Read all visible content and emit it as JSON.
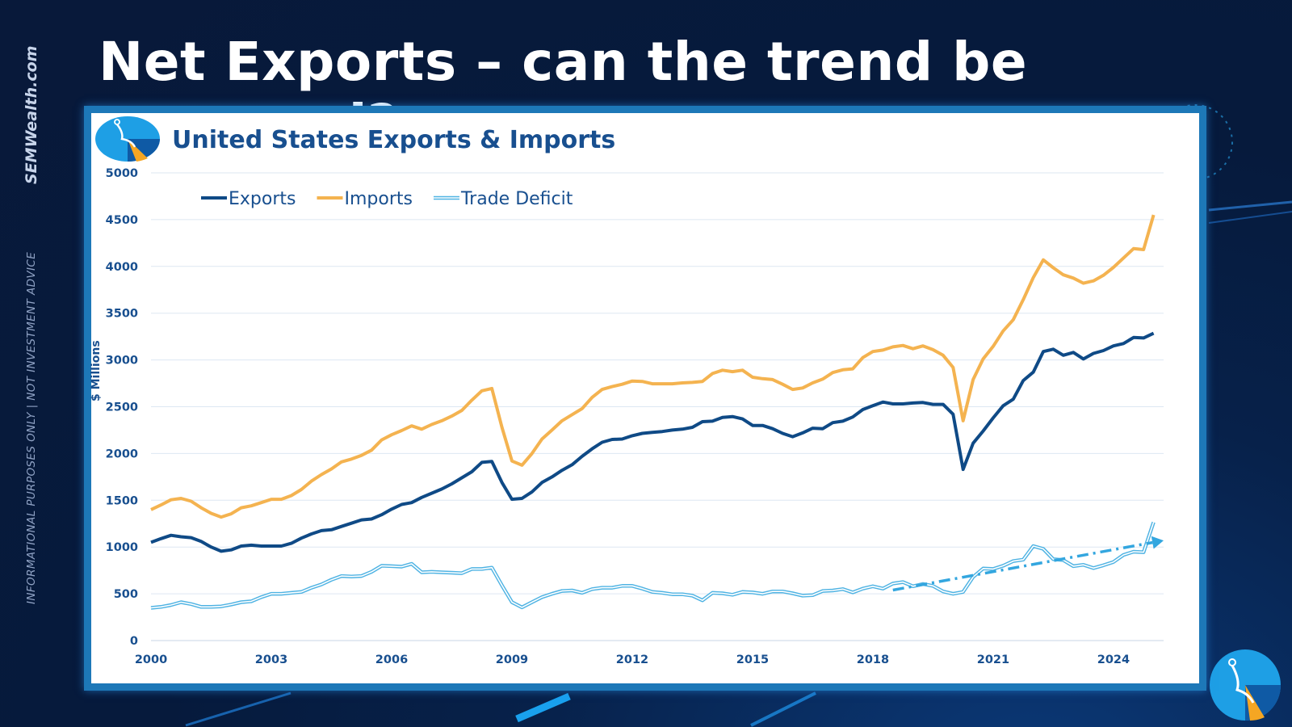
{
  "slide": {
    "title": "Net Exports – can the trend be reversed?",
    "brand": "SEMWealth.com",
    "disclaimer": "INFORMATIONAL PURPOSES ONLY | NOT INVESTMENT ADVICE"
  },
  "colors": {
    "exports": "#0f4a86",
    "imports": "#f4b350",
    "trade_deficit": "#4fb3e3",
    "trend": "#33a6df",
    "axis_text": "#184f8f",
    "grid": "#dde7f2"
  },
  "chart_data": {
    "type": "line",
    "title": "United States Exports & Imports",
    "xlabel": "",
    "ylabel": "$ Millions",
    "xlim": [
      2000,
      2025.25
    ],
    "ylim": [
      0,
      5000
    ],
    "y_ticks": [
      0,
      500,
      1000,
      1500,
      2000,
      2500,
      3000,
      3500,
      4000,
      4500,
      5000
    ],
    "x_ticks": [
      2000,
      2003,
      2006,
      2009,
      2012,
      2015,
      2018,
      2021,
      2024
    ],
    "grid": true,
    "legend_position": "top-left",
    "x": [
      2000.0,
      2000.25,
      2000.5,
      2000.75,
      2001.0,
      2001.25,
      2001.5,
      2001.75,
      2002.0,
      2002.25,
      2002.5,
      2002.75,
      2003.0,
      2003.25,
      2003.5,
      2003.75,
      2004.0,
      2004.25,
      2004.5,
      2004.75,
      2005.0,
      2005.25,
      2005.5,
      2005.75,
      2006.0,
      2006.25,
      2006.5,
      2006.75,
      2007.0,
      2007.25,
      2007.5,
      2007.75,
      2008.0,
      2008.25,
      2008.5,
      2008.75,
      2009.0,
      2009.25,
      2009.5,
      2009.75,
      2010.0,
      2010.25,
      2010.5,
      2010.75,
      2011.0,
      2011.25,
      2011.5,
      2011.75,
      2012.0,
      2012.25,
      2012.5,
      2012.75,
      2013.0,
      2013.25,
      2013.5,
      2013.75,
      2014.0,
      2014.25,
      2014.5,
      2014.75,
      2015.0,
      2015.25,
      2015.5,
      2015.75,
      2016.0,
      2016.25,
      2016.5,
      2016.75,
      2017.0,
      2017.25,
      2017.5,
      2017.75,
      2018.0,
      2018.25,
      2018.5,
      2018.75,
      2019.0,
      2019.25,
      2019.5,
      2019.75,
      2020.0,
      2020.25,
      2020.5,
      2020.75,
      2021.0,
      2021.25,
      2021.5,
      2021.75,
      2022.0,
      2022.25,
      2022.5,
      2022.75,
      2023.0,
      2023.25,
      2023.5,
      2023.75,
      2024.0,
      2024.25,
      2024.5,
      2024.75,
      2025.0
    ],
    "series": [
      {
        "name": "Exports",
        "color": "#0f4a86",
        "values": [
          1050,
          1090,
          1125,
          1110,
          1100,
          1060,
          1000,
          955,
          970,
          1010,
          1020,
          1010,
          1010,
          1010,
          1040,
          1095,
          1140,
          1175,
          1185,
          1220,
          1255,
          1290,
          1300,
          1345,
          1405,
          1455,
          1475,
          1530,
          1575,
          1620,
          1675,
          1740,
          1805,
          1905,
          1915,
          1690,
          1510,
          1520,
          1590,
          1690,
          1750,
          1820,
          1880,
          1970,
          2050,
          2120,
          2150,
          2155,
          2190,
          2215,
          2225,
          2235,
          2250,
          2260,
          2280,
          2340,
          2345,
          2385,
          2395,
          2370,
          2300,
          2300,
          2265,
          2215,
          2180,
          2220,
          2270,
          2265,
          2330,
          2345,
          2390,
          2470,
          2510,
          2550,
          2530,
          2530,
          2540,
          2545,
          2525,
          2525,
          2420,
          1830,
          2110,
          2240,
          2380,
          2510,
          2580,
          2780,
          2870,
          3090,
          3115,
          3050,
          3080,
          3010,
          3070,
          3100,
          3150,
          3175,
          3240,
          3235,
          3285
        ]
      },
      {
        "name": "Imports",
        "color": "#f4b350",
        "values": [
          1400,
          1450,
          1505,
          1520,
          1490,
          1420,
          1360,
          1320,
          1355,
          1420,
          1440,
          1475,
          1510,
          1510,
          1550,
          1615,
          1705,
          1775,
          1835,
          1910,
          1940,
          1980,
          2035,
          2145,
          2200,
          2245,
          2295,
          2260,
          2310,
          2350,
          2400,
          2460,
          2570,
          2670,
          2695,
          2280,
          1920,
          1875,
          2000,
          2155,
          2250,
          2350,
          2415,
          2480,
          2600,
          2685,
          2715,
          2740,
          2775,
          2770,
          2745,
          2745,
          2745,
          2755,
          2760,
          2770,
          2855,
          2890,
          2875,
          2890,
          2815,
          2800,
          2790,
          2740,
          2685,
          2700,
          2755,
          2795,
          2865,
          2895,
          2905,
          3025,
          3090,
          3105,
          3140,
          3155,
          3120,
          3150,
          3110,
          3050,
          2920,
          2350,
          2790,
          3010,
          3145,
          3310,
          3430,
          3645,
          3880,
          4070,
          3985,
          3910,
          3875,
          3820,
          3845,
          3905,
          3990,
          4090,
          4190,
          4180,
          4550
        ]
      },
      {
        "name": "Trade Deficit",
        "color": "#4fb3e3",
        "values": [
          350,
          360,
          380,
          410,
          390,
          360,
          360,
          365,
          385,
          410,
          420,
          465,
          500,
          500,
          510,
          520,
          565,
          600,
          650,
          690,
          685,
          690,
          735,
          800,
          795,
          790,
          820,
          730,
          735,
          730,
          725,
          720,
          765,
          765,
          780,
          590,
          410,
          355,
          410,
          465,
          500,
          530,
          535,
          510,
          550,
          565,
          565,
          585,
          585,
          555,
          520,
          510,
          495,
          495,
          480,
          430,
          510,
          505,
          490,
          520,
          515,
          500,
          525,
          525,
          505,
          480,
          485,
          530,
          535,
          550,
          515,
          555,
          580,
          555,
          610,
          625,
          580,
          605,
          585,
          525,
          500,
          520,
          680,
          770,
          765,
          800,
          850,
          865,
          1010,
          980,
          870,
          860,
          795,
          810,
          775,
          805,
          840,
          915,
          950,
          945,
          1265
        ]
      }
    ],
    "trendline": {
      "series": "Trade Deficit",
      "style": "dash-dot arrow",
      "from": {
        "x": 2018.5,
        "y": 540
      },
      "to": {
        "x": 2025.25,
        "y": 1070
      }
    }
  }
}
